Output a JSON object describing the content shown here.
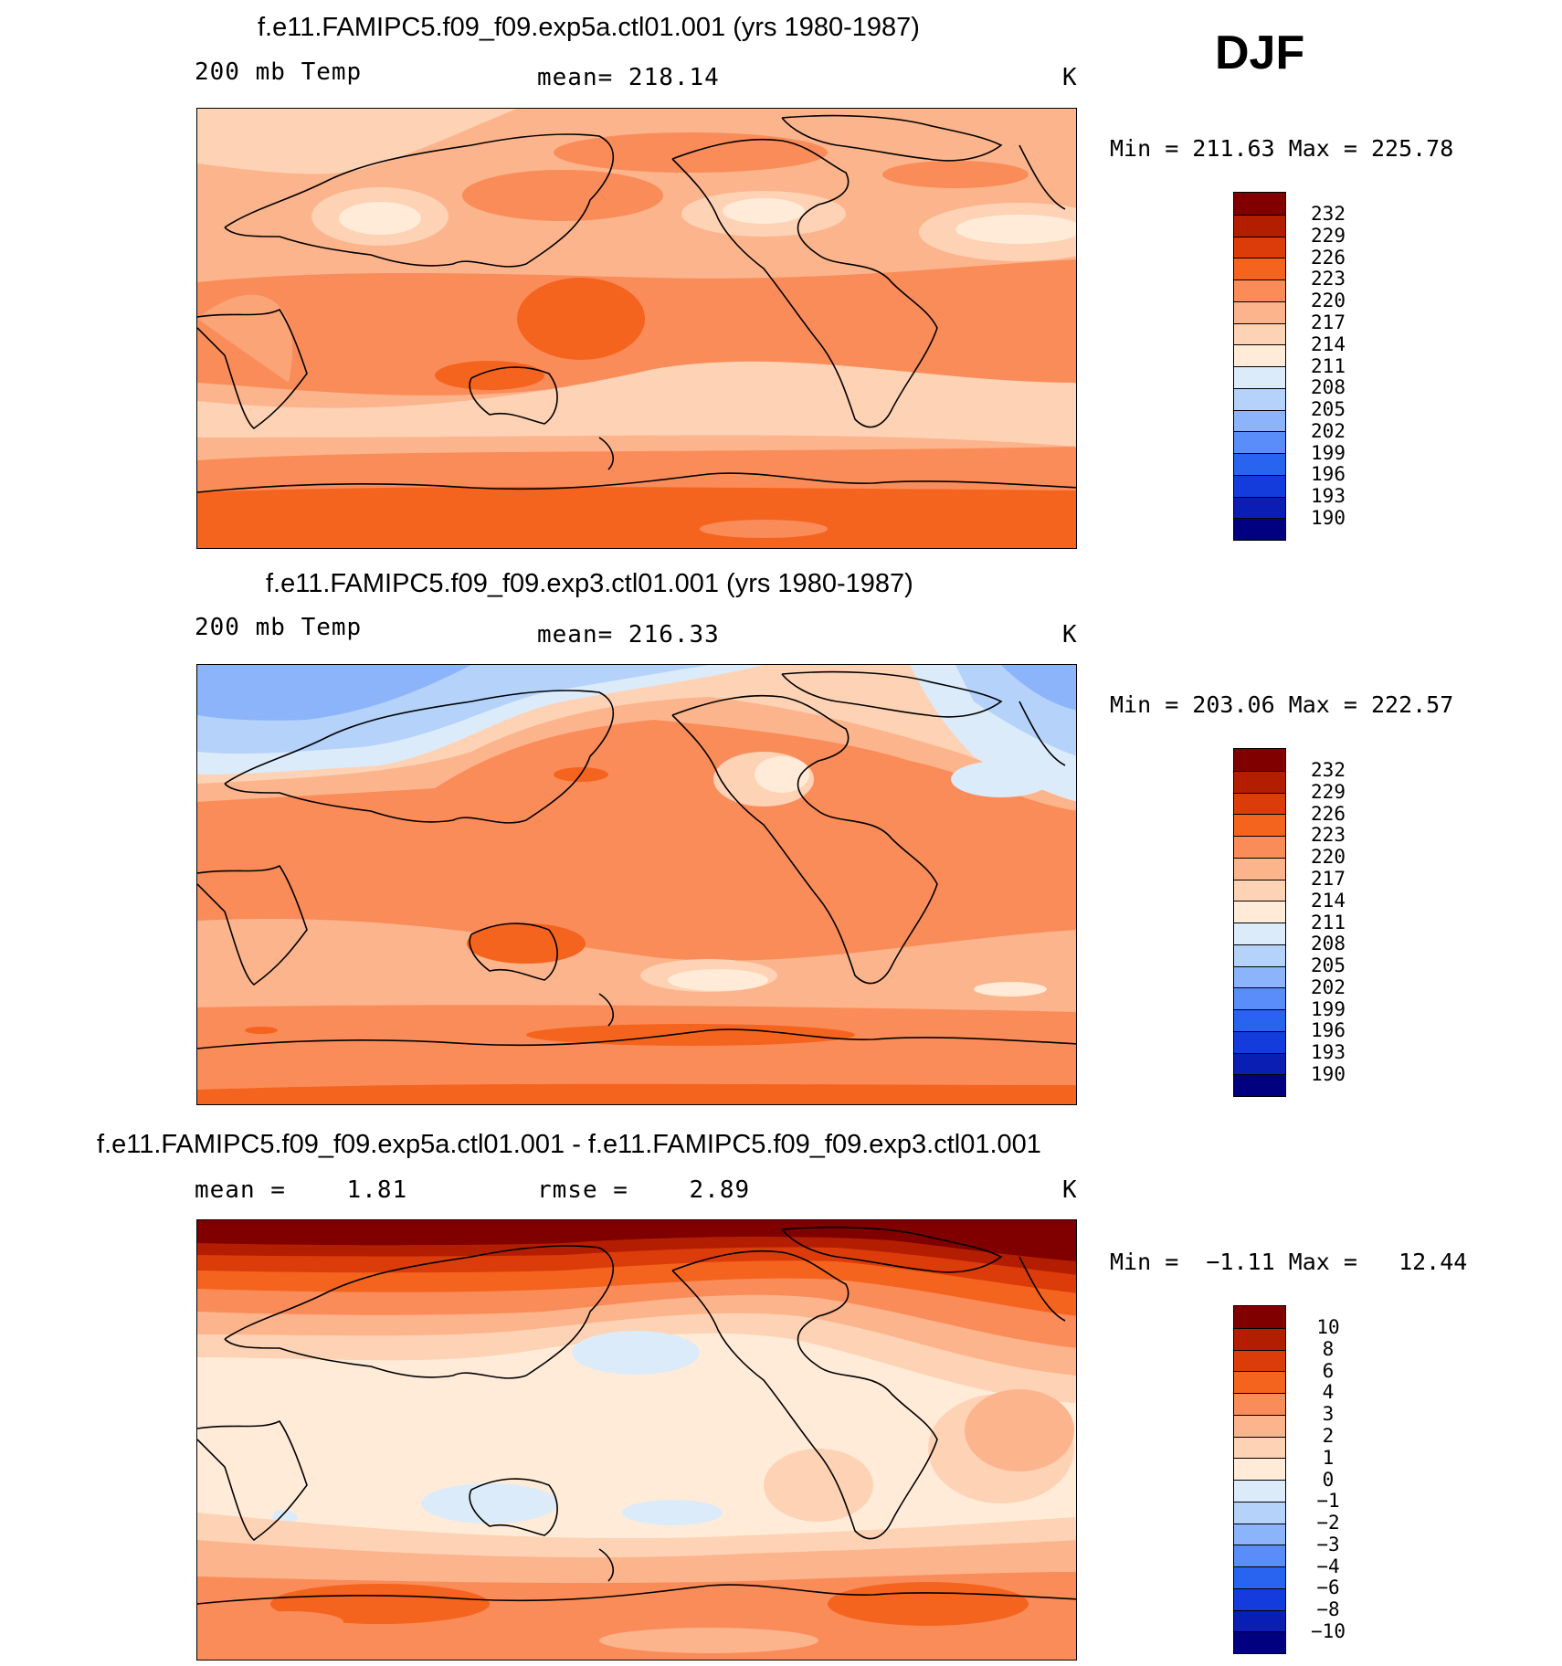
{
  "season": "DJF",
  "panels": [
    {
      "title": "f.e11.FAMIPC5.f09_f09.exp5a.ctl01.001 (yrs 1980-1987)",
      "sub_left": "200 mb Temp",
      "sub_mid": "mean= 218.14",
      "units": "K",
      "minmax": "Min = 211.63 Max = 225.78",
      "colorbar": {
        "labels": [
          "232",
          "229",
          "226",
          "223",
          "220",
          "217",
          "214",
          "211",
          "208",
          "205",
          "202",
          "199",
          "196",
          "193",
          "190"
        ],
        "colors": [
          "#800000",
          "#b41e00",
          "#dc3c0a",
          "#f5641e",
          "#fa8c5a",
          "#fcb48c",
          "#fed2b4",
          "#ffebd7",
          "#dcebfa",
          "#b4d2fa",
          "#8cb4fa",
          "#5a8cfa",
          "#2864f0",
          "#143cdc",
          "#0a1eb4",
          "#000080"
        ]
      }
    },
    {
      "title": "f.e11.FAMIPC5.f09_f09.exp3.ctl01.001 (yrs 1980-1987)",
      "sub_left": "200 mb Temp",
      "sub_mid": "mean= 216.33",
      "units": "K",
      "minmax": "Min = 203.06 Max = 222.57",
      "colorbar": {
        "labels": [
          "232",
          "229",
          "226",
          "223",
          "220",
          "217",
          "214",
          "211",
          "208",
          "205",
          "202",
          "199",
          "196",
          "193",
          "190"
        ],
        "colors": [
          "#800000",
          "#b41e00",
          "#dc3c0a",
          "#f5641e",
          "#fa8c5a",
          "#fcb48c",
          "#fed2b4",
          "#ffebd7",
          "#dcebfa",
          "#b4d2fa",
          "#8cb4fa",
          "#5a8cfa",
          "#2864f0",
          "#143cdc",
          "#0a1eb4",
          "#000080"
        ]
      }
    },
    {
      "title": "f.e11.FAMIPC5.f09_f09.exp5a.ctl01.001 - f.e11.FAMIPC5.f09_f09.exp3.ctl01.001",
      "sub_left": "mean =    1.81",
      "sub_mid": "rmse =    2.89",
      "units": "K",
      "minmax": "Min =  −1.11 Max =   12.44",
      "colorbar": {
        "labels": [
          "10",
          "8",
          "6",
          "4",
          "3",
          "2",
          "1",
          "0",
          "−1",
          "−2",
          "−3",
          "−4",
          "−6",
          "−8",
          "−10"
        ],
        "colors": [
          "#800000",
          "#b41e00",
          "#dc3c0a",
          "#f5641e",
          "#fa8c5a",
          "#fcb48c",
          "#fed2b4",
          "#ffebd7",
          "#dcebfa",
          "#b4d2fa",
          "#8cb4fa",
          "#5a8cfa",
          "#2864f0",
          "#143cdc",
          "#0a1eb4",
          "#000080"
        ]
      }
    }
  ]
}
